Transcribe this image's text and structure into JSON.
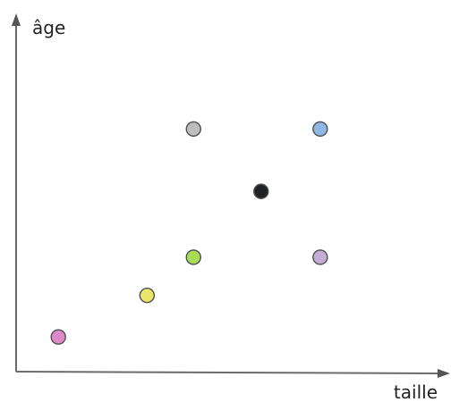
{
  "chart_data": {
    "type": "scatter",
    "title": "",
    "xlabel": "taille",
    "ylabel": "âge",
    "grid": false,
    "legend": "none",
    "axis_ticks": false,
    "xlim": [
      0,
      10
    ],
    "ylim": [
      0,
      10
    ],
    "points": [
      {
        "x": 1.0,
        "y": 1.0,
        "color": "#dd89c9"
      },
      {
        "x": 3.1,
        "y": 2.2,
        "color": "#ece56b"
      },
      {
        "x": 4.2,
        "y": 3.3,
        "color": "#a8dd55"
      },
      {
        "x": 4.2,
        "y": 7.0,
        "color": "#bdbdbd"
      },
      {
        "x": 5.8,
        "y": 5.2,
        "color": "#202226"
      },
      {
        "x": 7.2,
        "y": 7.0,
        "color": "#8fb9e5"
      },
      {
        "x": 7.2,
        "y": 3.3,
        "color": "#c7acd8"
      }
    ]
  }
}
